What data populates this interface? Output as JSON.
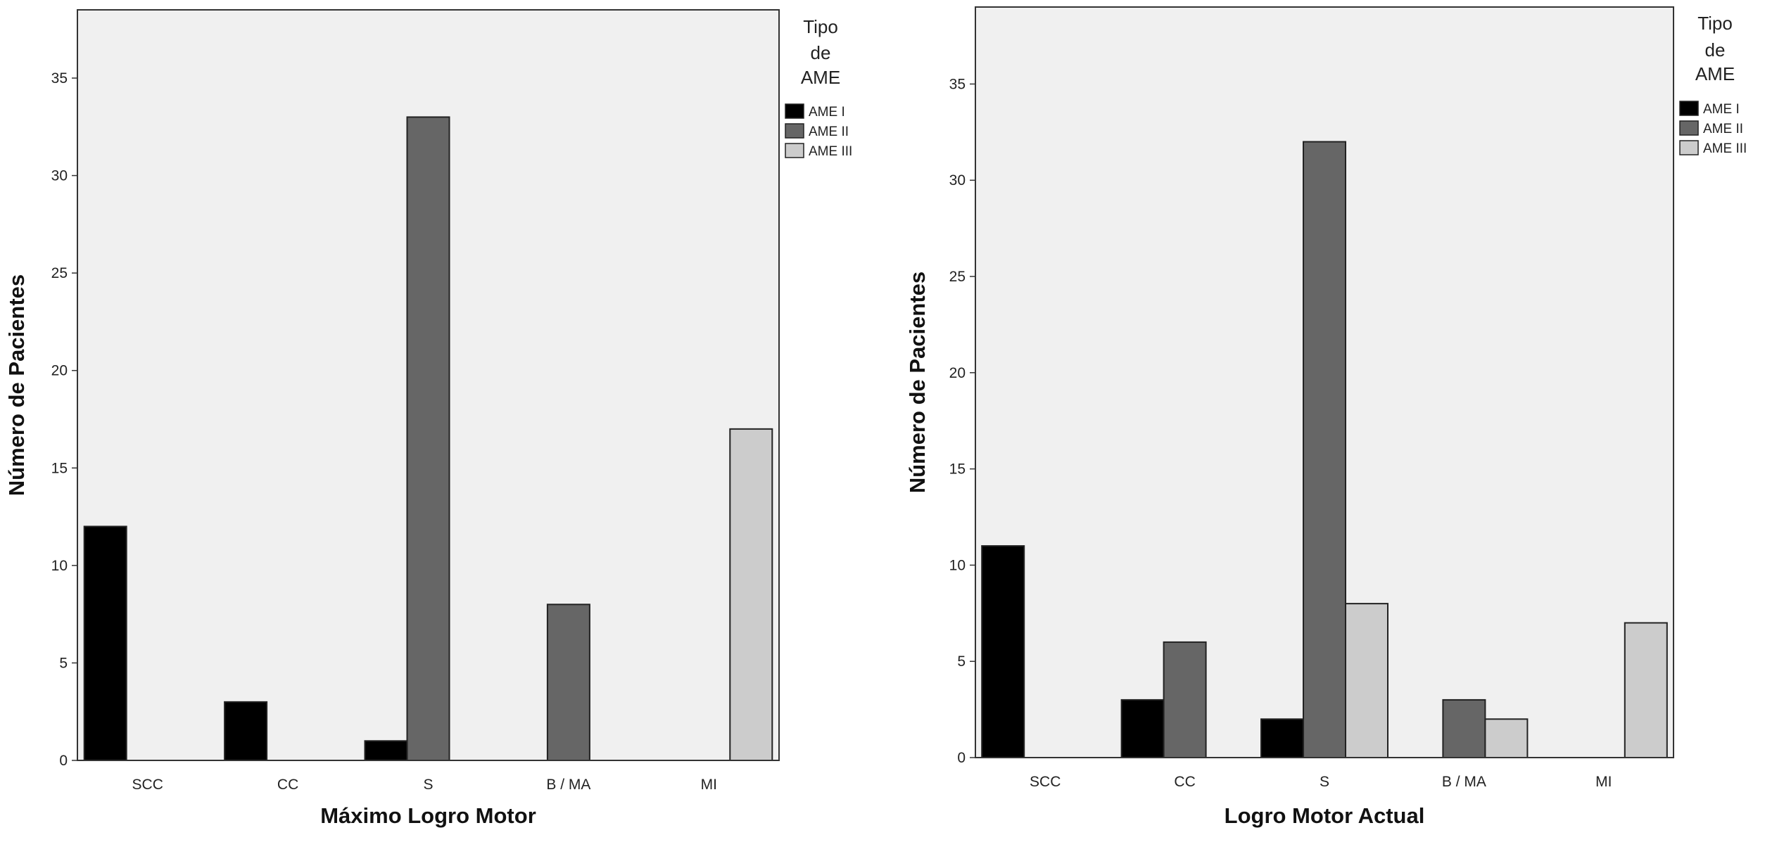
{
  "chart_data": [
    {
      "type": "bar",
      "xlabel": "Máximo Logro Motor",
      "ylabel": "Número de Pacientes",
      "categories": [
        "SCC",
        "CC",
        "S",
        "B / MA",
        "MI"
      ],
      "ylim": [
        0,
        38.5
      ],
      "yticks": [
        0,
        5,
        10,
        15,
        20,
        25,
        30,
        35
      ],
      "grid": false,
      "legend_title": [
        "Tipo",
        "de",
        "AME"
      ],
      "legend_position": "right",
      "series": [
        {
          "name": "AME I",
          "color": "#000000",
          "values": [
            12,
            3,
            1,
            0,
            0
          ]
        },
        {
          "name": "AME II",
          "color": "#666666",
          "values": [
            0,
            0,
            33,
            8,
            0
          ]
        },
        {
          "name": "AME III",
          "color": "#cccccc",
          "values": [
            0,
            0,
            0,
            0,
            17
          ]
        }
      ]
    },
    {
      "type": "bar",
      "xlabel": "Logro Motor Actual",
      "ylabel": "Número de Pacientes",
      "categories": [
        "SCC",
        "CC",
        "S",
        "B / MA",
        "MI"
      ],
      "ylim": [
        0,
        39
      ],
      "yticks": [
        0,
        5,
        10,
        15,
        20,
        25,
        30,
        35
      ],
      "grid": false,
      "legend_title": [
        "Tipo",
        "de",
        "AME"
      ],
      "legend_position": "right",
      "series": [
        {
          "name": "AME I",
          "color": "#000000",
          "values": [
            11,
            3,
            2,
            0,
            0
          ]
        },
        {
          "name": "AME II",
          "color": "#666666",
          "values": [
            0,
            6,
            32,
            3,
            0
          ]
        },
        {
          "name": "AME III",
          "color": "#cccccc",
          "values": [
            0,
            0,
            8,
            2,
            7
          ]
        }
      ]
    }
  ]
}
